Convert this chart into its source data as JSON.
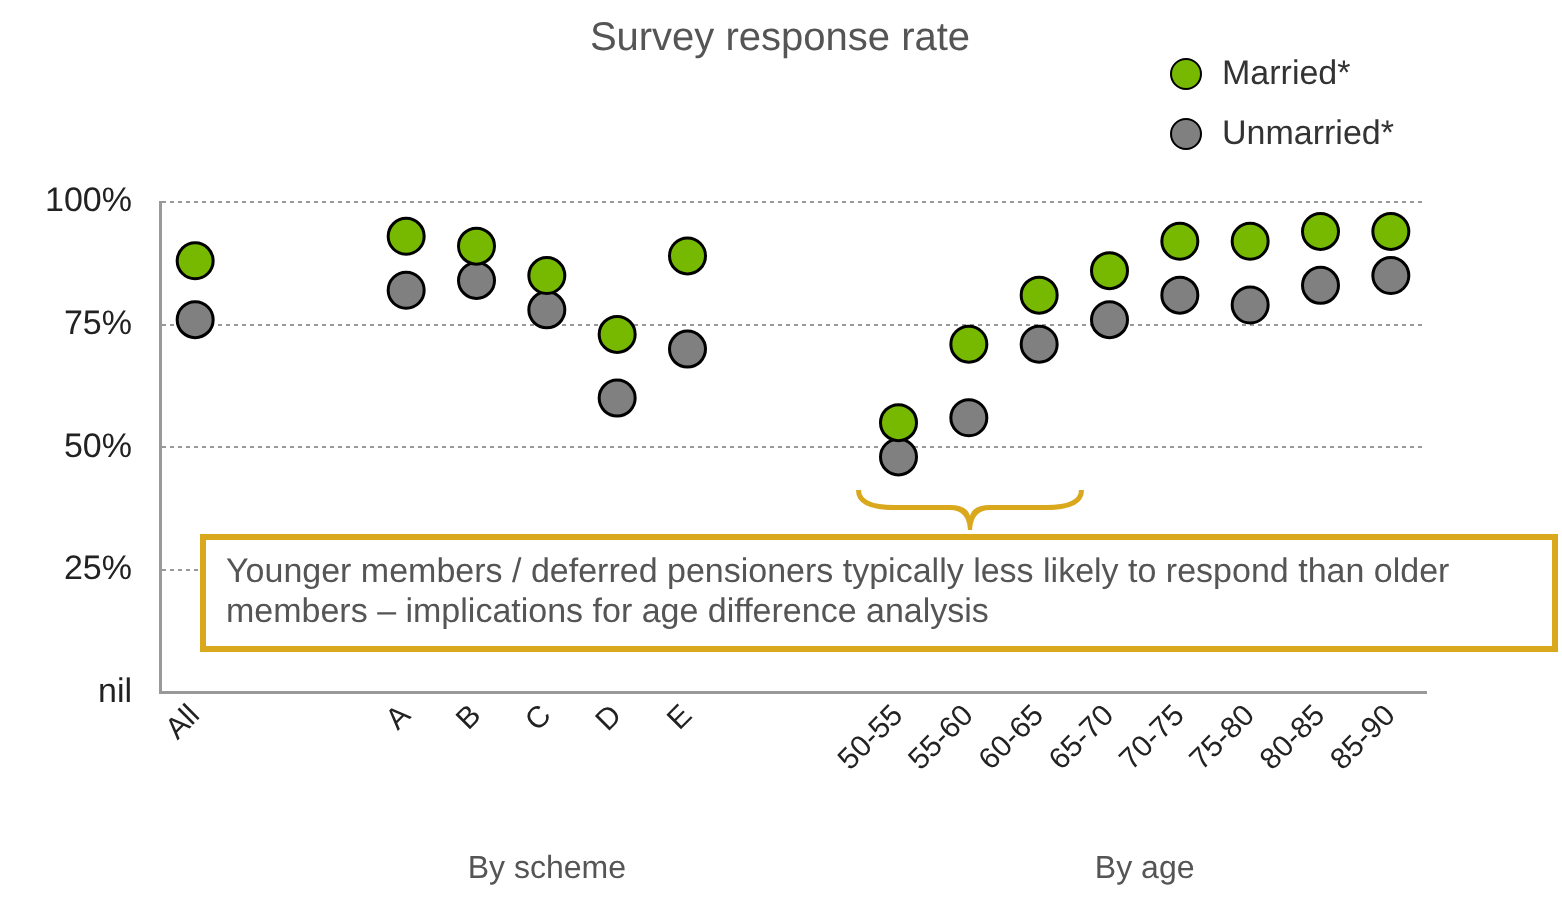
{
  "chart_data": {
    "type": "scatter",
    "title": "Survey response rate",
    "categories": [
      "All",
      null,
      null,
      "A",
      "B",
      "C",
      "D",
      "E",
      null,
      null,
      "50-55",
      "55-60",
      "60-65",
      "65-70",
      "70-75",
      "75-80",
      "80-85",
      "85-90"
    ],
    "series": [
      {
        "name": "Married*",
        "color": "#76b900",
        "values": [
          88,
          null,
          null,
          93,
          91,
          85,
          73,
          89,
          null,
          null,
          55,
          71,
          81,
          86,
          92,
          92,
          94,
          94
        ]
      },
      {
        "name": "Unmarried*",
        "color": "#808080",
        "values": [
          76,
          null,
          null,
          82,
          84,
          78,
          60,
          70,
          null,
          null,
          48,
          56,
          71,
          76,
          81,
          79,
          83,
          85
        ]
      }
    ],
    "ylim": [
      0,
      100
    ],
    "yticks": [
      {
        "value": 0,
        "label": "nil"
      },
      {
        "value": 25,
        "label": "25%"
      },
      {
        "value": 50,
        "label": "50%"
      },
      {
        "value": 75,
        "label": "75%"
      },
      {
        "value": 100,
        "label": "100%"
      }
    ],
    "grid": "y",
    "legend": "top right",
    "marker": "circle",
    "annotations": [
      "By scheme",
      "By age",
      "Younger members / deferred pensioners typically less likely to respond than older members – implications for age difference analysis"
    ]
  }
}
